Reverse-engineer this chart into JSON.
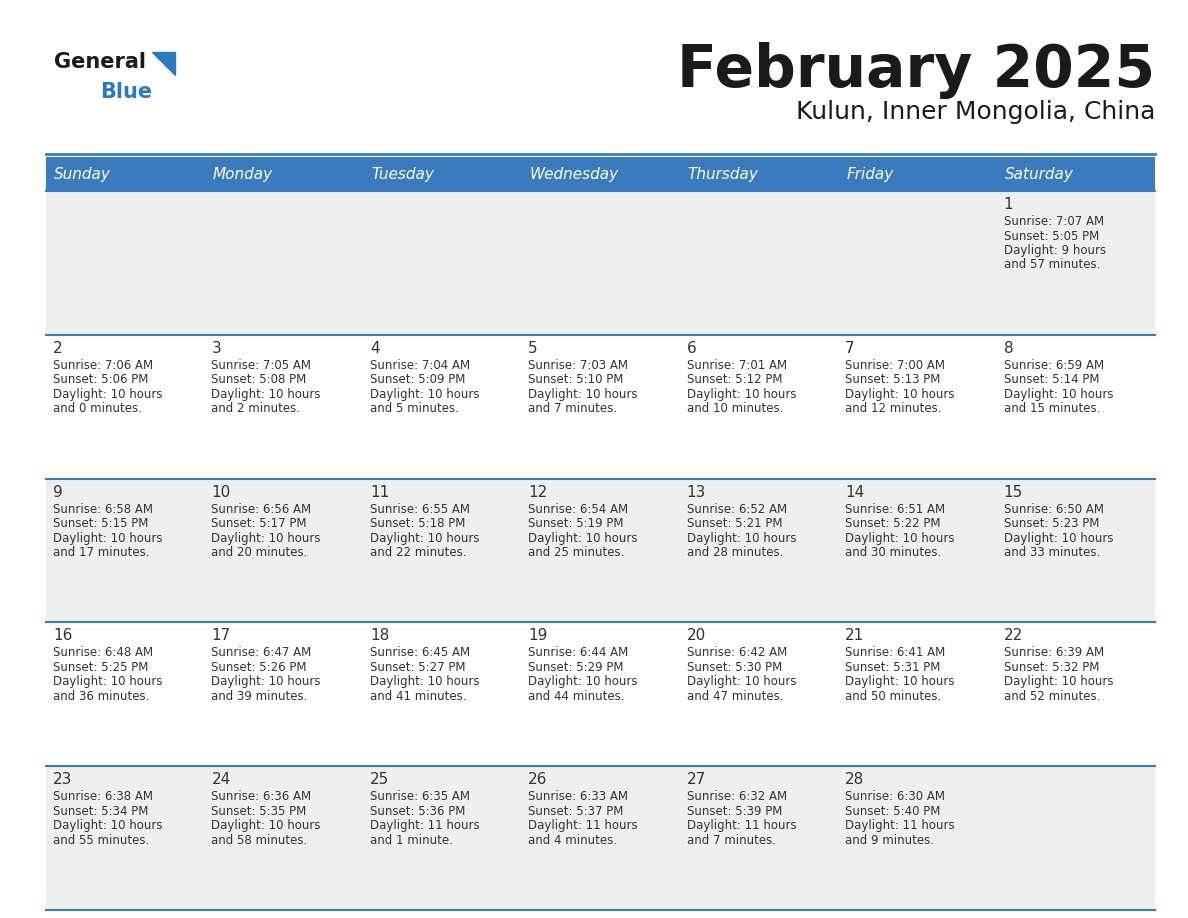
{
  "title": "February 2025",
  "subtitle": "Kulun, Inner Mongolia, China",
  "header_bg": "#3a7abf",
  "header_text_color": "#ffffff",
  "day_names": [
    "Sunday",
    "Monday",
    "Tuesday",
    "Wednesday",
    "Thursday",
    "Friday",
    "Saturday"
  ],
  "row_bg_even": "#efefef",
  "row_bg_odd": "#ffffff",
  "cell_border_color": "#3a7abf",
  "day_number_color": "#333333",
  "info_text_color": "#333333",
  "days_data": [
    {
      "day": 1,
      "col": 6,
      "row": 0,
      "sunrise": "7:07 AM",
      "sunset": "5:05 PM",
      "daylight_h": "9 hours",
      "daylight_m": "and 57 minutes."
    },
    {
      "day": 2,
      "col": 0,
      "row": 1,
      "sunrise": "7:06 AM",
      "sunset": "5:06 PM",
      "daylight_h": "10 hours",
      "daylight_m": "and 0 minutes."
    },
    {
      "day": 3,
      "col": 1,
      "row": 1,
      "sunrise": "7:05 AM",
      "sunset": "5:08 PM",
      "daylight_h": "10 hours",
      "daylight_m": "and 2 minutes."
    },
    {
      "day": 4,
      "col": 2,
      "row": 1,
      "sunrise": "7:04 AM",
      "sunset": "5:09 PM",
      "daylight_h": "10 hours",
      "daylight_m": "and 5 minutes."
    },
    {
      "day": 5,
      "col": 3,
      "row": 1,
      "sunrise": "7:03 AM",
      "sunset": "5:10 PM",
      "daylight_h": "10 hours",
      "daylight_m": "and 7 minutes."
    },
    {
      "day": 6,
      "col": 4,
      "row": 1,
      "sunrise": "7:01 AM",
      "sunset": "5:12 PM",
      "daylight_h": "10 hours",
      "daylight_m": "and 10 minutes."
    },
    {
      "day": 7,
      "col": 5,
      "row": 1,
      "sunrise": "7:00 AM",
      "sunset": "5:13 PM",
      "daylight_h": "10 hours",
      "daylight_m": "and 12 minutes."
    },
    {
      "day": 8,
      "col": 6,
      "row": 1,
      "sunrise": "6:59 AM",
      "sunset": "5:14 PM",
      "daylight_h": "10 hours",
      "daylight_m": "and 15 minutes."
    },
    {
      "day": 9,
      "col": 0,
      "row": 2,
      "sunrise": "6:58 AM",
      "sunset": "5:15 PM",
      "daylight_h": "10 hours",
      "daylight_m": "and 17 minutes."
    },
    {
      "day": 10,
      "col": 1,
      "row": 2,
      "sunrise": "6:56 AM",
      "sunset": "5:17 PM",
      "daylight_h": "10 hours",
      "daylight_m": "and 20 minutes."
    },
    {
      "day": 11,
      "col": 2,
      "row": 2,
      "sunrise": "6:55 AM",
      "sunset": "5:18 PM",
      "daylight_h": "10 hours",
      "daylight_m": "and 22 minutes."
    },
    {
      "day": 12,
      "col": 3,
      "row": 2,
      "sunrise": "6:54 AM",
      "sunset": "5:19 PM",
      "daylight_h": "10 hours",
      "daylight_m": "and 25 minutes."
    },
    {
      "day": 13,
      "col": 4,
      "row": 2,
      "sunrise": "6:52 AM",
      "sunset": "5:21 PM",
      "daylight_h": "10 hours",
      "daylight_m": "and 28 minutes."
    },
    {
      "day": 14,
      "col": 5,
      "row": 2,
      "sunrise": "6:51 AM",
      "sunset": "5:22 PM",
      "daylight_h": "10 hours",
      "daylight_m": "and 30 minutes."
    },
    {
      "day": 15,
      "col": 6,
      "row": 2,
      "sunrise": "6:50 AM",
      "sunset": "5:23 PM",
      "daylight_h": "10 hours",
      "daylight_m": "and 33 minutes."
    },
    {
      "day": 16,
      "col": 0,
      "row": 3,
      "sunrise": "6:48 AM",
      "sunset": "5:25 PM",
      "daylight_h": "10 hours",
      "daylight_m": "and 36 minutes."
    },
    {
      "day": 17,
      "col": 1,
      "row": 3,
      "sunrise": "6:47 AM",
      "sunset": "5:26 PM",
      "daylight_h": "10 hours",
      "daylight_m": "and 39 minutes."
    },
    {
      "day": 18,
      "col": 2,
      "row": 3,
      "sunrise": "6:45 AM",
      "sunset": "5:27 PM",
      "daylight_h": "10 hours",
      "daylight_m": "and 41 minutes."
    },
    {
      "day": 19,
      "col": 3,
      "row": 3,
      "sunrise": "6:44 AM",
      "sunset": "5:29 PM",
      "daylight_h": "10 hours",
      "daylight_m": "and 44 minutes."
    },
    {
      "day": 20,
      "col": 4,
      "row": 3,
      "sunrise": "6:42 AM",
      "sunset": "5:30 PM",
      "daylight_h": "10 hours",
      "daylight_m": "and 47 minutes."
    },
    {
      "day": 21,
      "col": 5,
      "row": 3,
      "sunrise": "6:41 AM",
      "sunset": "5:31 PM",
      "daylight_h": "10 hours",
      "daylight_m": "and 50 minutes."
    },
    {
      "day": 22,
      "col": 6,
      "row": 3,
      "sunrise": "6:39 AM",
      "sunset": "5:32 PM",
      "daylight_h": "10 hours",
      "daylight_m": "and 52 minutes."
    },
    {
      "day": 23,
      "col": 0,
      "row": 4,
      "sunrise": "6:38 AM",
      "sunset": "5:34 PM",
      "daylight_h": "10 hours",
      "daylight_m": "and 55 minutes."
    },
    {
      "day": 24,
      "col": 1,
      "row": 4,
      "sunrise": "6:36 AM",
      "sunset": "5:35 PM",
      "daylight_h": "10 hours",
      "daylight_m": "and 58 minutes."
    },
    {
      "day": 25,
      "col": 2,
      "row": 4,
      "sunrise": "6:35 AM",
      "sunset": "5:36 PM",
      "daylight_h": "11 hours",
      "daylight_m": "and 1 minute."
    },
    {
      "day": 26,
      "col": 3,
      "row": 4,
      "sunrise": "6:33 AM",
      "sunset": "5:37 PM",
      "daylight_h": "11 hours",
      "daylight_m": "and 4 minutes."
    },
    {
      "day": 27,
      "col": 4,
      "row": 4,
      "sunrise": "6:32 AM",
      "sunset": "5:39 PM",
      "daylight_h": "11 hours",
      "daylight_m": "and 7 minutes."
    },
    {
      "day": 28,
      "col": 5,
      "row": 4,
      "sunrise": "6:30 AM",
      "sunset": "5:40 PM",
      "daylight_h": "11 hours",
      "daylight_m": "and 9 minutes."
    }
  ]
}
